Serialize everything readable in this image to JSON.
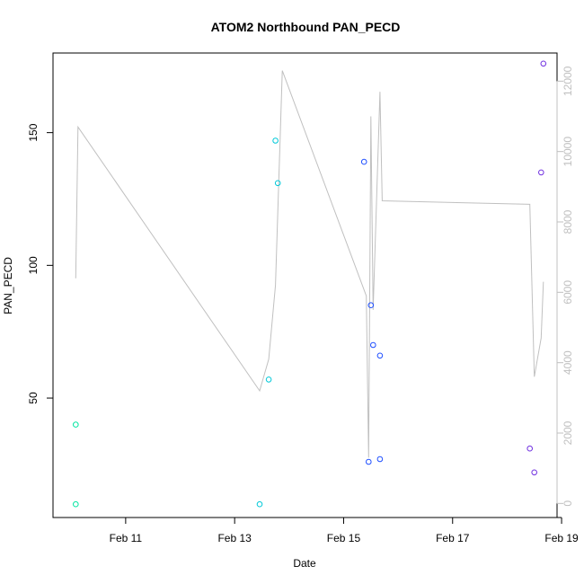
{
  "chart_data": {
    "type": "scatter",
    "title": "ATOM2 Northbound PAN_PECD",
    "xlabel": "Date",
    "ylabel": "PAN_PECD",
    "x_ticks": [
      "Feb 11",
      "Feb 13",
      "Feb 15",
      "Feb 17",
      "Feb 19"
    ],
    "x_tick_values": [
      "2021-02-11",
      "2021-02-13",
      "2021-02-15",
      "2021-02-17",
      "2021-02-19"
    ],
    "xlim": [
      "2021-02-09T16:00",
      "2021-02-18T22:00"
    ],
    "y_ticks": [
      50,
      100,
      150
    ],
    "ylim": [
      5,
      180
    ],
    "y2_ticks": [
      0,
      2000,
      4000,
      6000,
      8000,
      10000,
      12000
    ],
    "y2lim": [
      -400,
      12800
    ],
    "y2color": "#c0c0c0",
    "grid": false,
    "points": [
      {
        "x": "2021-02-10T02:00",
        "y": 10,
        "color": "#00e5a0"
      },
      {
        "x": "2021-02-10T02:00",
        "y": 40,
        "color": "#00e5a0"
      },
      {
        "x": "2021-02-13T11:00",
        "y": 10,
        "color": "#00c8d8"
      },
      {
        "x": "2021-02-13T15:00",
        "y": 57,
        "color": "#00c8d8"
      },
      {
        "x": "2021-02-13T18:00",
        "y": 147,
        "color": "#00c8d8"
      },
      {
        "x": "2021-02-13T19:00",
        "y": 131,
        "color": "#00c8d8"
      },
      {
        "x": "2021-02-15T09:00",
        "y": 139,
        "color": "#2050ff"
      },
      {
        "x": "2021-02-15T11:00",
        "y": 26,
        "color": "#2050ff"
      },
      {
        "x": "2021-02-15T12:00",
        "y": 85,
        "color": "#2050ff"
      },
      {
        "x": "2021-02-15T13:00",
        "y": 70,
        "color": "#2050ff"
      },
      {
        "x": "2021-02-15T16:00",
        "y": 66,
        "color": "#2050ff"
      },
      {
        "x": "2021-02-15T16:00",
        "y": 27,
        "color": "#2050ff"
      },
      {
        "x": "2021-02-18T10:00",
        "y": 31,
        "color": "#7030e0"
      },
      {
        "x": "2021-02-18T12:00",
        "y": 22,
        "color": "#7030e0"
      },
      {
        "x": "2021-02-18T15:00",
        "y": 135,
        "color": "#7030e0"
      },
      {
        "x": "2021-02-18T16:00",
        "y": 176,
        "color": "#7030e0"
      }
    ],
    "y2_series": {
      "color": "#c0c0c0",
      "x": [
        "2021-02-10T02:00",
        "2021-02-10T03:00",
        "2021-02-13T11:00",
        "2021-02-13T15:00",
        "2021-02-13T18:00",
        "2021-02-13T21:00",
        "2021-02-15T10:00",
        "2021-02-15T11:00",
        "2021-02-15T12:00",
        "2021-02-15T13:00",
        "2021-02-15T16:00",
        "2021-02-15T17:00",
        "2021-02-18T10:00",
        "2021-02-18T12:00",
        "2021-02-18T15:00",
        "2021-02-18T16:00"
      ],
      "y": [
        6400,
        10700,
        3200,
        4100,
        6200,
        12300,
        5900,
        1300,
        11000,
        5500,
        11700,
        8600,
        8500,
        3600,
        4700,
        6300
      ]
    }
  }
}
